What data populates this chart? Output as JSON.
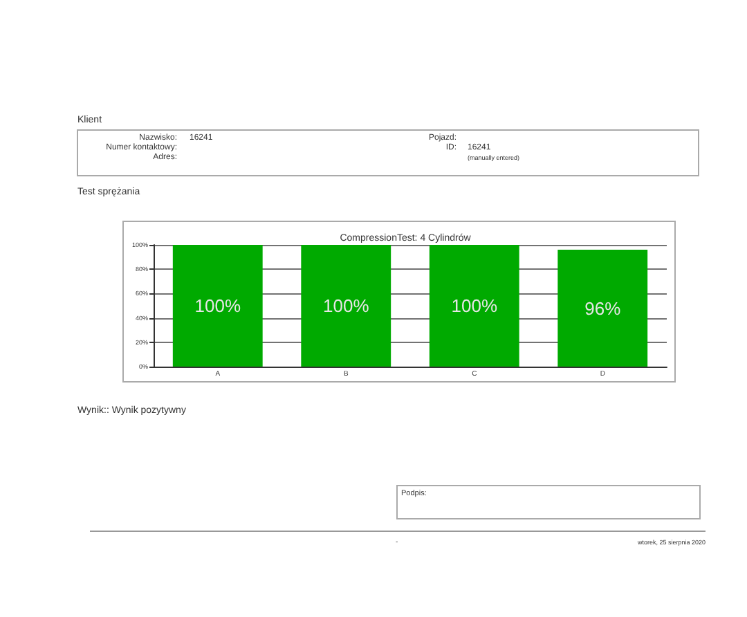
{
  "chart_data": {
    "type": "bar",
    "title": "CompressionTest: 4 Cylindrów",
    "categories": [
      "A",
      "B",
      "C",
      "D"
    ],
    "values": [
      100,
      100,
      100,
      96
    ],
    "color": "#00aa00",
    "value_labels": [
      "100%",
      "100%",
      "100%",
      "96%"
    ],
    "ylim": [
      0,
      100
    ],
    "yticks": [
      {
        "value": 0,
        "label": "0%"
      },
      {
        "value": 20,
        "label": "20%"
      },
      {
        "value": 40,
        "label": "40%"
      },
      {
        "value": 60,
        "label": "60%"
      },
      {
        "value": 80,
        "label": "80%"
      },
      {
        "value": 100,
        "label": "100%"
      }
    ],
    "grid": "y",
    "annotations": [
      "Klient",
      "Nazwisko:",
      "16241",
      "Numer kontaktowy:",
      "Adres:",
      "Pojazd:",
      "ID:",
      "16241",
      "(manually entered)",
      "Test sprężania",
      "Wynik:: Wynik pozytywny",
      "Podpis:",
      "-",
      "wtorek, 25 sierpnia 2020"
    ]
  }
}
